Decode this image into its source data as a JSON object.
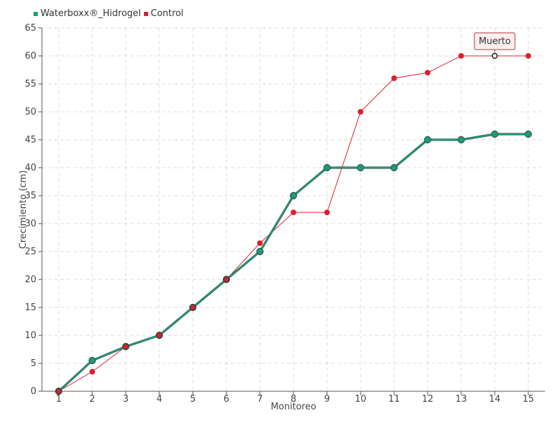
{
  "chart_data": {
    "type": "line",
    "title": "",
    "xlabel": "Monitoreo",
    "ylabel": "Crecimiento (cm)",
    "categories": [
      "1",
      "2",
      "3",
      "4",
      "5",
      "6",
      "7",
      "8",
      "9",
      "10",
      "11",
      "12",
      "13",
      "14",
      "15"
    ],
    "ylim": [
      0,
      65
    ],
    "yticks": [
      "0",
      "5",
      "10",
      "15",
      "20",
      "25",
      "30",
      "35",
      "40",
      "45",
      "50",
      "55",
      "60",
      "65"
    ],
    "grid": true,
    "legend_position": "top-left",
    "series": [
      {
        "name": "Waterboxx®_Hidrogel",
        "color": "#1e9a7a",
        "values": [
          0,
          5.5,
          8,
          10,
          15,
          20,
          25,
          35,
          40,
          40,
          40,
          45,
          45,
          46,
          46
        ]
      },
      {
        "name": "Control",
        "color": "#e01e2d",
        "values": [
          0,
          3.5,
          8,
          10,
          15,
          20,
          26.5,
          32,
          32,
          50,
          56,
          57,
          60,
          60,
          60
        ]
      }
    ],
    "annotations": [
      {
        "text": "Muerto",
        "series": "Control",
        "x": "14",
        "y": 60
      }
    ]
  }
}
